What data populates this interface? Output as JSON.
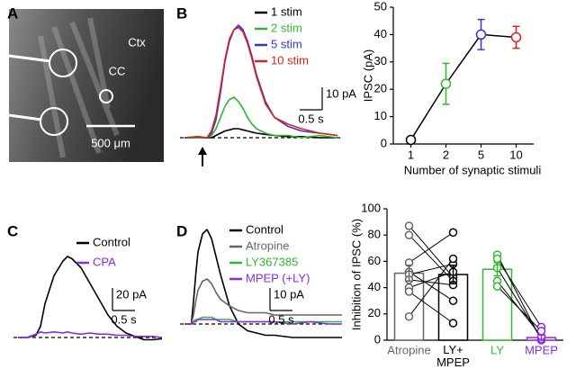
{
  "panel_labels": [
    "A",
    "B",
    "C",
    "D"
  ],
  "panel_a": {
    "labels": [
      "Ctx",
      "CC"
    ],
    "scale_bar": "500 μm"
  },
  "chart_data": [
    {
      "type": "trace",
      "x": [
        0,
        0.3,
        0.5,
        0.6,
        0.7,
        0.8,
        0.9,
        1.0,
        1.1,
        1.2,
        1.3,
        1.4,
        1.5,
        1.6,
        1.8,
        2.0,
        2.3,
        2.6,
        3.0,
        3.4
      ],
      "series": [
        {
          "name": "1 stim",
          "color": "#000000",
          "values": [
            0,
            0,
            0,
            0,
            1,
            2,
            3,
            3.5,
            4,
            4,
            3.5,
            3,
            2.5,
            2,
            1.5,
            1,
            0.5,
            0.5,
            0,
            0
          ]
        },
        {
          "name": "2 stim",
          "color": "#2db82d",
          "values": [
            0,
            0,
            0,
            1,
            4,
            9,
            14,
            17,
            18,
            16,
            13,
            9,
            6,
            4,
            2,
            1,
            1,
            0,
            1,
            0
          ]
        },
        {
          "name": "5 stim",
          "color": "#3333dd",
          "values": [
            0,
            0.5,
            0,
            2,
            8,
            20,
            34,
            43,
            48,
            50,
            48,
            43,
            36,
            28,
            16,
            9,
            5,
            3,
            2,
            1
          ]
        },
        {
          "name": "10 stim",
          "color": "#e02020",
          "values": [
            0,
            0.5,
            0,
            3,
            10,
            22,
            35,
            44,
            48,
            49,
            47,
            42,
            35,
            27,
            15,
            9,
            6,
            4,
            2,
            1
          ]
        }
      ],
      "scale_bars": {
        "y": {
          "value": 10,
          "label": "10 pA"
        },
        "x": {
          "value": 0.5,
          "label": "0.5 s"
        }
      }
    },
    {
      "type": "line",
      "categories": [
        "1",
        "2",
        "5",
        "10"
      ],
      "values": [
        1.5,
        22,
        40,
        39
      ],
      "errors": [
        0.5,
        7.5,
        5.5,
        4
      ],
      "colors": [
        "#000000",
        "#2db82d",
        "#3333dd",
        "#e02020"
      ],
      "line_color": "#000000",
      "ylim": [
        0,
        50
      ],
      "yticks": [
        0,
        10,
        20,
        30,
        40,
        50
      ],
      "x_label": "Number of synaptic stimuli",
      "y_label": "IPSC (pA)"
    },
    {
      "type": "trace",
      "x": [
        0,
        0.2,
        0.4,
        0.5,
        0.6,
        0.8,
        1.0,
        1.1,
        1.2,
        1.4,
        1.6,
        1.8,
        2.0,
        2.2,
        2.4,
        2.6,
        2.8,
        3.0,
        3.2
      ],
      "series": [
        {
          "name": "Control",
          "color": "#000000",
          "values": [
            0,
            0,
            2,
            10,
            30,
            55,
            68,
            72,
            70,
            62,
            48,
            34,
            20,
            10,
            4,
            1,
            -2,
            -2,
            -1
          ]
        },
        {
          "name": "CPA",
          "color": "#8b2be2",
          "values": [
            0,
            0,
            3,
            5,
            4,
            5,
            4,
            5,
            4,
            3,
            4,
            3,
            3,
            2,
            2,
            1,
            1,
            1,
            0
          ]
        }
      ],
      "scale_bars": {
        "y": {
          "value": 20,
          "label": "20 pA"
        },
        "x": {
          "value": 0.5,
          "label": "0.5 s"
        }
      }
    },
    {
      "type": "trace",
      "x": [
        0,
        0.15,
        0.2,
        0.25,
        0.3,
        0.4,
        0.5,
        0.6,
        0.7,
        0.8,
        1.0,
        1.2,
        1.4,
        1.6,
        1.8,
        2.0,
        2.4,
        2.8,
        3.2,
        3.5
      ],
      "series": [
        {
          "name": "Control",
          "color": "#000000",
          "values": [
            0,
            0,
            10,
            22,
            32,
            40,
            42,
            38,
            30,
            22,
            8,
            0,
            -3,
            -4,
            -5,
            -5,
            -6,
            -6,
            -6,
            -6
          ]
        },
        {
          "name": "Atropine",
          "color": "#666666",
          "values": [
            0,
            0,
            4,
            10,
            15,
            19,
            20,
            18,
            14,
            11,
            8,
            6,
            5,
            5,
            5,
            4,
            4,
            4,
            4,
            4
          ]
        },
        {
          "name": "LY367385",
          "color": "#2db82d",
          "values": [
            0,
            0,
            1,
            2,
            2,
            3,
            3,
            3,
            2,
            2,
            2,
            1,
            1,
            1,
            1,
            1,
            1,
            1,
            1,
            1
          ]
        },
        {
          "name": "MPEP (+LY)",
          "color": "#8b2be2",
          "values": [
            0,
            0,
            1,
            1,
            2,
            2,
            2,
            2,
            2,
            1,
            1,
            1,
            1,
            1,
            1,
            1,
            0,
            1,
            0,
            0
          ]
        }
      ],
      "scale_bars": {
        "y": {
          "value": 10,
          "label": "10 pA"
        },
        "x": {
          "value": 0.5,
          "label": "0.5 s"
        }
      }
    },
    {
      "type": "bar",
      "categories": [
        "Atropine",
        "LY+ MPEP",
        "LY",
        "MPEP"
      ],
      "values": [
        51,
        50,
        54,
        2
      ],
      "errors": [
        6,
        7,
        5,
        2
      ],
      "colors": [
        "#666666",
        "#000000",
        "#2db82d",
        "#8b2be2"
      ],
      "points": [
        [
          87,
          80,
          59,
          52,
          50,
          46,
          40,
          37,
          18
        ],
        [
          48,
          45,
          82,
          30,
          58,
          42,
          52,
          13,
          62
        ],
        [
          65,
          62,
          55,
          45,
          41
        ],
        [
          0,
          10,
          1,
          3,
          7
        ]
      ],
      "pairs": [
        [
          0,
          1
        ],
        [
          2,
          3
        ]
      ],
      "ylim": [
        0,
        100
      ],
      "yticks": [
        0,
        20,
        40,
        60,
        80,
        100
      ],
      "y_label": "Inhibition of IPSC (%)"
    }
  ]
}
